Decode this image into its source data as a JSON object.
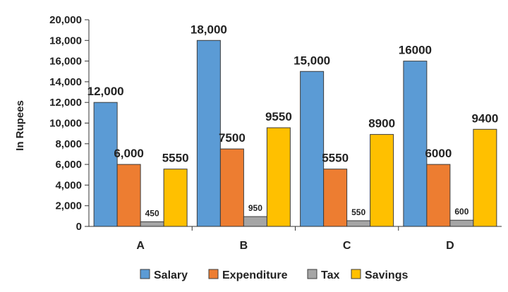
{
  "chart_data": {
    "type": "bar",
    "title": "",
    "xlabel": "",
    "ylabel": "In Rupees",
    "ylim": [
      0,
      20000
    ],
    "yticks": [
      {
        "value": 0,
        "label": "0"
      },
      {
        "value": 2000,
        "label": "2,000"
      },
      {
        "value": 4000,
        "label": "4,000"
      },
      {
        "value": 6000,
        "label": "6,000"
      },
      {
        "value": 8000,
        "label": "8,000"
      },
      {
        "value": 10000,
        "label": "10,000"
      },
      {
        "value": 12000,
        "label": "12,000"
      },
      {
        "value": 14000,
        "label": "14,000"
      },
      {
        "value": 16000,
        "label": "16,000"
      },
      {
        "value": 18000,
        "label": "18,000"
      },
      {
        "value": 20000,
        "label": "20,000"
      }
    ],
    "categories": [
      "A",
      "B",
      "C",
      "D"
    ],
    "grid": false,
    "legend_position": "bottom",
    "series": [
      {
        "name": "Salary",
        "color": "#5B9BD5",
        "values": [
          12000,
          18000,
          15000,
          16000
        ],
        "labels": [
          "12,000",
          "18,000",
          "15,000",
          "16000"
        ]
      },
      {
        "name": "Expenditure",
        "color": "#ED7D31",
        "values": [
          6000,
          7500,
          5550,
          6000
        ],
        "labels": [
          "6,000",
          "7500",
          "5550",
          "6000"
        ]
      },
      {
        "name": "Tax",
        "color": "#A5A5A5",
        "values": [
          450,
          950,
          550,
          600
        ],
        "labels": [
          "450",
          "950",
          "550",
          "600"
        ]
      },
      {
        "name": "Savings",
        "color": "#FFC000",
        "values": [
          5550,
          9550,
          8900,
          9400
        ],
        "labels": [
          "5550",
          "9550",
          "8900",
          "9400"
        ]
      }
    ]
  }
}
